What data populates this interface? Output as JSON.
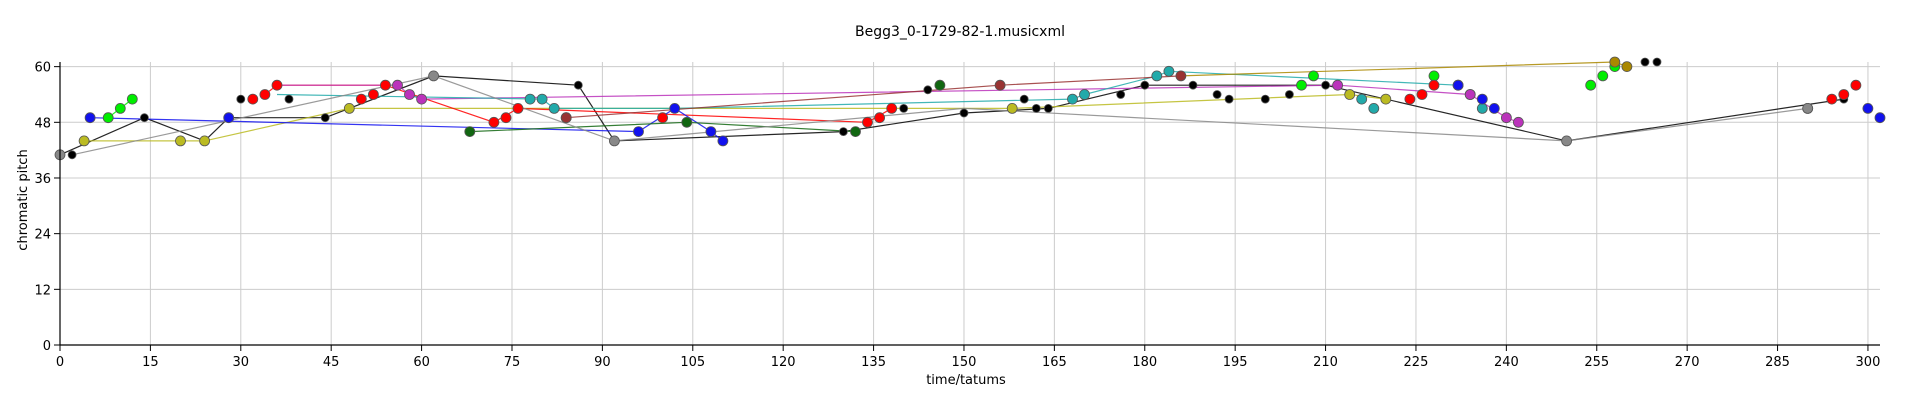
{
  "chart_data": {
    "type": "scatter",
    "title": "Begg3_0-1729-82-1.musicxml",
    "xlabel": "time/tatums",
    "ylabel": "chromatic pitch",
    "xlim": [
      0,
      302
    ],
    "ylim": [
      0,
      61
    ],
    "xticks": [
      0,
      15,
      30,
      45,
      60,
      75,
      90,
      105,
      120,
      135,
      150,
      165,
      180,
      195,
      210,
      225,
      240,
      255,
      270,
      285,
      300
    ],
    "yticks": [
      0,
      12,
      24,
      36,
      48,
      60
    ],
    "grid": true,
    "legend": "none",
    "series": [
      {
        "color": "#000000",
        "points": [
          [
            0,
            41
          ],
          [
            2,
            41
          ],
          [
            5,
            49
          ],
          [
            14,
            49
          ],
          [
            24,
            44
          ],
          [
            28,
            49
          ],
          [
            30,
            53
          ],
          [
            38,
            53
          ],
          [
            44,
            49
          ],
          [
            62,
            58
          ],
          [
            86,
            56
          ],
          [
            92,
            44
          ],
          [
            130,
            46
          ],
          [
            140,
            51
          ],
          [
            144,
            55
          ],
          [
            150,
            50
          ],
          [
            160,
            53
          ],
          [
            162,
            51
          ],
          [
            164,
            51
          ],
          [
            168,
            53
          ],
          [
            176,
            54
          ],
          [
            180,
            56
          ],
          [
            188,
            56
          ],
          [
            192,
            54
          ],
          [
            194,
            53
          ],
          [
            200,
            53
          ],
          [
            204,
            54
          ],
          [
            210,
            56
          ],
          [
            250,
            44
          ],
          [
            263,
            61
          ],
          [
            265,
            61
          ],
          [
            296,
            53
          ]
        ],
        "path": [
          [
            0,
            41
          ],
          [
            14,
            49
          ],
          [
            24,
            44
          ],
          [
            28,
            49
          ],
          [
            44,
            49
          ],
          [
            62,
            58
          ],
          [
            86,
            56
          ],
          [
            92,
            44
          ],
          [
            130,
            46
          ],
          [
            150,
            50
          ],
          [
            164,
            51
          ],
          [
            180,
            56
          ],
          [
            210,
            56
          ],
          [
            250,
            44
          ],
          [
            296,
            53
          ]
        ]
      },
      {
        "color": "#00ee00",
        "points": [
          [
            8,
            49
          ],
          [
            10,
            51
          ],
          [
            12,
            53
          ],
          [
            84,
            49
          ],
          [
            206,
            56
          ],
          [
            208,
            58
          ],
          [
            228,
            58
          ],
          [
            254,
            56
          ],
          [
            256,
            58
          ],
          [
            258,
            60
          ]
        ],
        "path": [
          [
            8,
            49
          ],
          [
            10,
            51
          ],
          [
            12,
            53
          ]
        ]
      },
      {
        "color": "#bbbb22",
        "points": [
          [
            4,
            44
          ],
          [
            20,
            44
          ],
          [
            24,
            44
          ],
          [
            48,
            51
          ],
          [
            158,
            51
          ],
          [
            214,
            54
          ],
          [
            220,
            53
          ]
        ],
        "path": [
          [
            4,
            44
          ],
          [
            24,
            44
          ],
          [
            48,
            51
          ],
          [
            158,
            51
          ],
          [
            214,
            54
          ],
          [
            220,
            53
          ]
        ]
      },
      {
        "color": "#ff0000",
        "points": [
          [
            32,
            53
          ],
          [
            34,
            54
          ],
          [
            36,
            56
          ],
          [
            50,
            53
          ],
          [
            52,
            54
          ],
          [
            54,
            56
          ],
          [
            72,
            48
          ],
          [
            74,
            49
          ],
          [
            76,
            51
          ],
          [
            100,
            49
          ],
          [
            134,
            48
          ],
          [
            136,
            49
          ],
          [
            138,
            51
          ],
          [
            224,
            53
          ],
          [
            226,
            54
          ],
          [
            228,
            56
          ],
          [
            234,
            54
          ],
          [
            294,
            53
          ],
          [
            296,
            54
          ],
          [
            298,
            56
          ]
        ],
        "path": [
          [
            34,
            54
          ],
          [
            36,
            56
          ],
          [
            54,
            56
          ],
          [
            72,
            48
          ],
          [
            76,
            51
          ],
          [
            134,
            48
          ],
          [
            138,
            51
          ]
        ]
      },
      {
        "color": "#bb33bb",
        "points": [
          [
            56,
            56
          ],
          [
            58,
            54
          ],
          [
            60,
            53
          ],
          [
            212,
            56
          ],
          [
            234,
            54
          ],
          [
            240,
            49
          ],
          [
            242,
            48
          ]
        ],
        "path": [
          [
            36,
            56
          ],
          [
            56,
            56
          ],
          [
            58,
            54
          ],
          [
            60,
            53
          ],
          [
            212,
            56
          ],
          [
            234,
            54
          ],
          [
            240,
            49
          ],
          [
            242,
            48
          ]
        ]
      },
      {
        "color": "#22aaaa",
        "points": [
          [
            78,
            53
          ],
          [
            80,
            53
          ],
          [
            82,
            51
          ],
          [
            168,
            53
          ],
          [
            170,
            54
          ],
          [
            182,
            58
          ],
          [
            184,
            59
          ],
          [
            216,
            53
          ],
          [
            218,
            51
          ],
          [
            232,
            56
          ],
          [
            236,
            51
          ]
        ],
        "path": [
          [
            36,
            54
          ],
          [
            80,
            53
          ],
          [
            82,
            51
          ],
          [
            102,
            51
          ],
          [
            168,
            53
          ],
          [
            170,
            54
          ],
          [
            182,
            58
          ],
          [
            184,
            59
          ],
          [
            232,
            56
          ]
        ]
      },
      {
        "color": "#1111ee",
        "points": [
          [
            5,
            49
          ],
          [
            28,
            49
          ],
          [
            96,
            46
          ],
          [
            102,
            51
          ],
          [
            108,
            46
          ],
          [
            110,
            44
          ],
          [
            232,
            56
          ],
          [
            236,
            53
          ],
          [
            238,
            51
          ],
          [
            290,
            51
          ],
          [
            300,
            51
          ],
          [
            302,
            49
          ]
        ],
        "path": [
          [
            5,
            49
          ],
          [
            96,
            46
          ],
          [
            102,
            51
          ],
          [
            108,
            46
          ],
          [
            110,
            44
          ]
        ]
      },
      {
        "color": "#116611",
        "points": [
          [
            68,
            46
          ],
          [
            104,
            48
          ],
          [
            132,
            46
          ],
          [
            146,
            56
          ]
        ],
        "path": [
          [
            68,
            46
          ],
          [
            104,
            48
          ],
          [
            132,
            46
          ]
        ]
      },
      {
        "color": "#993333",
        "points": [
          [
            84,
            49
          ],
          [
            156,
            56
          ],
          [
            186,
            58
          ]
        ],
        "path": [
          [
            84,
            49
          ],
          [
            156,
            56
          ],
          [
            186,
            58
          ]
        ]
      },
      {
        "color": "#888888",
        "points": [
          [
            0,
            41
          ],
          [
            62,
            58
          ],
          [
            92,
            44
          ],
          [
            250,
            44
          ],
          [
            290,
            51
          ]
        ],
        "path": [
          [
            2,
            41
          ],
          [
            62,
            58
          ],
          [
            92,
            44
          ],
          [
            150,
            51
          ],
          [
            250,
            44
          ],
          [
            290,
            51
          ]
        ]
      },
      {
        "color": "#aa8800",
        "points": [
          [
            258,
            61
          ],
          [
            260,
            60
          ]
        ],
        "path": [
          [
            186,
            58
          ],
          [
            258,
            61
          ],
          [
            260,
            60
          ]
        ]
      }
    ]
  }
}
